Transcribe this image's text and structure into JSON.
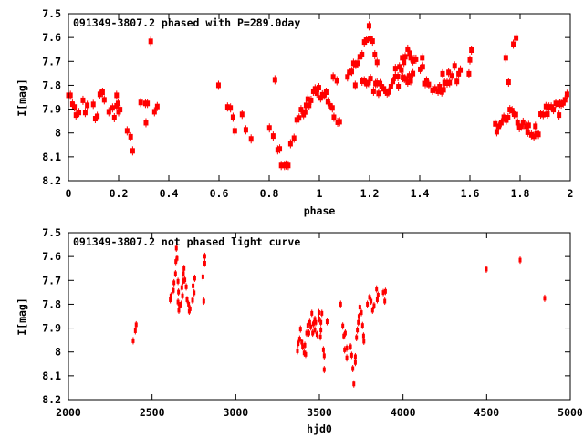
{
  "colors": {
    "points": "#ff0000",
    "axes": "#000000"
  },
  "chart_data": [
    {
      "type": "scatter",
      "title": "091349-3807.2 phased with P=289.0day",
      "xlabel": "phase",
      "ylabel": "I[mag]",
      "xlim": [
        0,
        2
      ],
      "ylim": [
        7.5,
        8.2
      ],
      "y_inverted": true,
      "grid": false,
      "xticks": [
        "0",
        "0.2",
        "0.4",
        "0.6",
        "0.8",
        "1",
        "1.2",
        "1.4",
        "1.6",
        "1.8",
        "2"
      ],
      "yticks": [
        "7.5",
        "7.6",
        "7.7",
        "7.8",
        "7.9",
        "8",
        "8.1",
        "8.2"
      ],
      "points": [
        [
          0.0,
          7.842
        ],
        [
          0.008,
          7.842
        ],
        [
          0.016,
          7.879
        ],
        [
          0.024,
          7.891
        ],
        [
          0.03,
          7.925
        ],
        [
          0.042,
          7.914
        ],
        [
          0.058,
          7.863
        ],
        [
          0.067,
          7.914
        ],
        [
          0.075,
          7.884
        ],
        [
          0.099,
          7.88
        ],
        [
          0.107,
          7.94
        ],
        [
          0.115,
          7.93
        ],
        [
          0.125,
          7.838
        ],
        [
          0.136,
          7.829
        ],
        [
          0.143,
          7.861
        ],
        [
          0.161,
          7.911
        ],
        [
          0.176,
          7.895
        ],
        [
          0.183,
          7.936
        ],
        [
          0.192,
          7.842
        ],
        [
          0.192,
          7.886
        ],
        [
          0.198,
          7.876
        ],
        [
          0.2,
          7.911
        ],
        [
          0.206,
          7.902
        ],
        [
          0.234,
          7.991
        ],
        [
          0.248,
          8.016
        ],
        [
          0.256,
          8.075
        ],
        [
          0.288,
          7.872
        ],
        [
          0.307,
          7.876
        ],
        [
          0.315,
          7.876
        ],
        [
          0.309,
          7.957
        ],
        [
          0.328,
          7.616
        ],
        [
          0.343,
          7.911
        ],
        [
          0.354,
          7.889
        ],
        [
          0.598,
          7.8
        ],
        [
          0.634,
          7.891
        ],
        [
          0.646,
          7.895
        ],
        [
          0.656,
          7.934
        ],
        [
          0.663,
          7.991
        ],
        [
          0.692,
          7.922
        ],
        [
          0.707,
          7.987
        ],
        [
          0.728,
          8.025
        ],
        [
          0.801,
          7.979
        ],
        [
          0.816,
          8.013
        ],
        [
          0.823,
          7.777
        ],
        [
          0.834,
          8.071
        ],
        [
          0.842,
          8.067
        ],
        [
          0.848,
          8.136
        ],
        [
          0.861,
          8.136
        ],
        [
          0.867,
          8.134
        ],
        [
          0.876,
          8.136
        ],
        [
          0.885,
          8.045
        ],
        [
          0.899,
          8.022
        ],
        [
          0.91,
          7.945
        ],
        [
          0.919,
          7.937
        ],
        [
          0.927,
          7.902
        ],
        [
          0.937,
          7.923
        ],
        [
          0.943,
          7.912
        ],
        [
          0.947,
          7.884
        ],
        [
          0.959,
          7.884
        ],
        [
          0.954,
          7.858
        ],
        [
          0.967,
          7.863
        ],
        [
          0.976,
          7.825
        ],
        [
          0.983,
          7.815
        ],
        [
          0.99,
          7.833
        ],
        [
          0.998,
          7.81
        ],
        [
          1.005,
          7.853
        ],
        [
          1.012,
          7.84
        ],
        [
          1.019,
          7.842
        ],
        [
          1.027,
          7.829
        ],
        [
          1.034,
          7.869
        ],
        [
          1.043,
          7.886
        ],
        [
          1.052,
          7.895
        ],
        [
          1.058,
          7.934
        ],
        [
          1.073,
          7.955
        ],
        [
          1.081,
          7.953
        ],
        [
          1.055,
          7.765
        ],
        [
          1.07,
          7.781
        ],
        [
          1.112,
          7.765
        ],
        [
          1.119,
          7.746
        ],
        [
          1.129,
          7.742
        ],
        [
          1.136,
          7.708
        ],
        [
          1.145,
          7.713
        ],
        [
          1.153,
          7.708
        ],
        [
          1.161,
          7.681
        ],
        [
          1.17,
          7.672
        ],
        [
          1.143,
          7.8
        ],
        [
          1.17,
          7.783
        ],
        [
          1.179,
          7.781
        ],
        [
          1.188,
          7.793
        ],
        [
          1.196,
          7.789
        ],
        [
          1.204,
          7.772
        ],
        [
          1.179,
          7.619
        ],
        [
          1.188,
          7.611
        ],
        [
          1.198,
          7.551
        ],
        [
          1.202,
          7.605
        ],
        [
          1.212,
          7.615
        ],
        [
          1.221,
          7.672
        ],
        [
          1.23,
          7.704
        ],
        [
          1.216,
          7.825
        ],
        [
          1.224,
          7.793
        ],
        [
          1.236,
          7.834
        ],
        [
          1.23,
          7.791
        ],
        [
          1.242,
          7.793
        ],
        [
          1.248,
          7.806
        ],
        [
          1.257,
          7.815
        ],
        [
          1.264,
          7.825
        ],
        [
          1.27,
          7.832
        ],
        [
          1.276,
          7.828
        ],
        [
          1.285,
          7.806
        ],
        [
          1.293,
          7.784
        ],
        [
          1.303,
          7.764
        ],
        [
          1.303,
          7.73
        ],
        [
          1.313,
          7.764
        ],
        [
          1.315,
          7.806
        ],
        [
          1.319,
          7.723
        ],
        [
          1.327,
          7.736
        ],
        [
          1.333,
          7.768
        ],
        [
          1.339,
          7.772
        ],
        [
          1.337,
          7.704
        ],
        [
          1.345,
          7.774
        ],
        [
          1.352,
          7.787
        ],
        [
          1.358,
          7.761
        ],
        [
          1.364,
          7.781
        ],
        [
          1.373,
          7.751
        ],
        [
          1.33,
          7.685
        ],
        [
          1.342,
          7.681
        ],
        [
          1.352,
          7.649
        ],
        [
          1.36,
          7.666
        ],
        [
          1.364,
          7.685
        ],
        [
          1.373,
          7.698
        ],
        [
          1.378,
          7.691
        ],
        [
          1.385,
          7.691
        ],
        [
          1.402,
          7.733
        ],
        [
          1.41,
          7.685
        ],
        [
          1.412,
          7.723
        ],
        [
          1.422,
          7.793
        ],
        [
          1.427,
          7.781
        ],
        [
          1.436,
          7.797
        ],
        [
          1.451,
          7.821
        ],
        [
          1.461,
          7.815
        ],
        [
          1.473,
          7.825
        ],
        [
          1.479,
          7.806
        ],
        [
          1.488,
          7.828
        ],
        [
          1.495,
          7.819
        ],
        [
          1.491,
          7.752
        ],
        [
          1.499,
          7.789
        ],
        [
          1.509,
          7.791
        ],
        [
          1.519,
          7.789
        ],
        [
          1.515,
          7.746
        ],
        [
          1.528,
          7.761
        ],
        [
          1.539,
          7.719
        ],
        [
          1.548,
          7.784
        ],
        [
          1.555,
          7.752
        ],
        [
          1.562,
          7.736
        ],
        [
          1.596,
          7.752
        ],
        [
          1.6,
          7.694
        ],
        [
          1.606,
          7.653
        ],
        [
          1.701,
          7.962
        ],
        [
          1.707,
          7.995
        ],
        [
          1.715,
          7.972
        ],
        [
          1.725,
          7.957
        ],
        [
          1.735,
          7.934
        ],
        [
          1.745,
          7.946
        ],
        [
          1.752,
          7.936
        ],
        [
          1.743,
          7.685
        ],
        [
          1.754,
          7.787
        ],
        [
          1.759,
          7.902
        ],
        [
          1.768,
          7.906
        ],
        [
          1.776,
          7.921
        ],
        [
          1.783,
          7.923
        ],
        [
          1.773,
          7.628
        ],
        [
          1.784,
          7.602
        ],
        [
          1.79,
          7.957
        ],
        [
          1.797,
          7.978
        ],
        [
          1.805,
          7.972
        ],
        [
          1.812,
          7.955
        ],
        [
          1.824,
          7.972
        ],
        [
          1.834,
          7.968
        ],
        [
          1.83,
          7.997
        ],
        [
          1.845,
          8.008
        ],
        [
          1.855,
          8.014
        ],
        [
          1.861,
          7.972
        ],
        [
          1.867,
          8.004
        ],
        [
          1.873,
          8.006
        ],
        [
          1.882,
          7.921
        ],
        [
          1.892,
          7.923
        ],
        [
          1.909,
          7.921
        ],
        [
          1.903,
          7.889
        ],
        [
          1.915,
          7.891
        ],
        [
          1.924,
          7.891
        ],
        [
          1.933,
          7.902
        ],
        [
          1.942,
          7.876
        ],
        [
          1.951,
          7.879
        ],
        [
          1.958,
          7.876
        ],
        [
          1.964,
          7.879
        ],
        [
          1.972,
          7.874
        ],
        [
          1.979,
          7.861
        ],
        [
          1.987,
          7.838
        ],
        [
          1.955,
          7.925
        ]
      ]
    },
    {
      "type": "scatter",
      "title": "091349-3807.2 not phased light curve",
      "xlabel": "hjd0",
      "ylabel": "I[mag]",
      "xlim": [
        2000,
        5000
      ],
      "ylim": [
        7.5,
        8.2
      ],
      "y_inverted": true,
      "grid": false,
      "xticks": [
        "2000",
        "2500",
        "3000",
        "3500",
        "4000",
        "4500",
        "5000"
      ],
      "yticks": [
        "7.5",
        "7.6",
        "7.7",
        "7.8",
        "7.9",
        "8",
        "8.1",
        "8.2"
      ],
      "points": [
        [
          2405,
          7.886
        ],
        [
          2400,
          7.911
        ],
        [
          2387,
          7.953
        ],
        [
          2645,
          7.565
        ],
        [
          2649,
          7.608
        ],
        [
          2642,
          7.621
        ],
        [
          2815,
          7.599
        ],
        [
          2815,
          7.628
        ],
        [
          2691,
          7.65
        ],
        [
          2687,
          7.672
        ],
        [
          2696,
          7.698
        ],
        [
          2685,
          7.704
        ],
        [
          2640,
          7.672
        ],
        [
          2655,
          7.704
        ],
        [
          2631,
          7.71
        ],
        [
          2627,
          7.742
        ],
        [
          2658,
          7.749
        ],
        [
          2678,
          7.73
        ],
        [
          2704,
          7.727
        ],
        [
          2682,
          7.765
        ],
        [
          2613,
          7.765
        ],
        [
          2609,
          7.781
        ],
        [
          2655,
          7.791
        ],
        [
          2664,
          7.806
        ],
        [
          2673,
          7.8
        ],
        [
          2660,
          7.825
        ],
        [
          2709,
          7.781
        ],
        [
          2718,
          7.8
        ],
        [
          2727,
          7.819
        ],
        [
          2722,
          7.829
        ],
        [
          2742,
          7.783
        ],
        [
          2745,
          7.723
        ],
        [
          2751,
          7.752
        ],
        [
          2755,
          7.691
        ],
        [
          2804,
          7.685
        ],
        [
          2809,
          7.787
        ],
        [
          3369,
          7.995
        ],
        [
          3373,
          7.965
        ],
        [
          3382,
          7.946
        ],
        [
          3387,
          7.904
        ],
        [
          3395,
          7.959
        ],
        [
          3400,
          7.978
        ],
        [
          3409,
          8.004
        ],
        [
          3418,
          8.01
        ],
        [
          3413,
          7.972
        ],
        [
          3424,
          7.921
        ],
        [
          3437,
          7.921
        ],
        [
          3431,
          7.889
        ],
        [
          3442,
          7.876
        ],
        [
          3449,
          7.895
        ],
        [
          3455,
          7.838
        ],
        [
          3464,
          7.882
        ],
        [
          3460,
          7.921
        ],
        [
          3473,
          7.908
        ],
        [
          3478,
          7.876
        ],
        [
          3473,
          7.863
        ],
        [
          3486,
          7.927
        ],
        [
          3497,
          7.861
        ],
        [
          3497,
          7.835
        ],
        [
          3509,
          7.876
        ],
        [
          3509,
          7.908
        ],
        [
          3515,
          7.838
        ],
        [
          3506,
          7.937
        ],
        [
          3524,
          7.991
        ],
        [
          3529,
          8.016
        ],
        [
          3529,
          8.074
        ],
        [
          3546,
          7.873
        ],
        [
          3627,
          7.8
        ],
        [
          3640,
          7.891
        ],
        [
          3646,
          7.933
        ],
        [
          3655,
          7.921
        ],
        [
          3651,
          7.991
        ],
        [
          3664,
          7.984
        ],
        [
          3664,
          8.025
        ],
        [
          3686,
          7.978
        ],
        [
          3693,
          8.014
        ],
        [
          3715,
          8.02
        ],
        [
          3715,
          8.044
        ],
        [
          3700,
          8.07
        ],
        [
          3706,
          8.134
        ],
        [
          3722,
          7.94
        ],
        [
          3727,
          7.908
        ],
        [
          3733,
          7.876
        ],
        [
          3737,
          7.851
        ],
        [
          3742,
          7.812
        ],
        [
          3751,
          7.835
        ],
        [
          3758,
          7.889
        ],
        [
          3764,
          7.933
        ],
        [
          3766,
          7.955
        ],
        [
          3787,
          7.8
        ],
        [
          3800,
          7.771
        ],
        [
          3809,
          7.787
        ],
        [
          3818,
          7.825
        ],
        [
          3827,
          7.806
        ],
        [
          3842,
          7.736
        ],
        [
          3851,
          7.762
        ],
        [
          3846,
          7.781
        ],
        [
          3882,
          7.751
        ],
        [
          3895,
          7.746
        ],
        [
          3891,
          7.787
        ],
        [
          4498,
          7.653
        ],
        [
          4700,
          7.615
        ],
        [
          4847,
          7.775
        ]
      ]
    }
  ]
}
